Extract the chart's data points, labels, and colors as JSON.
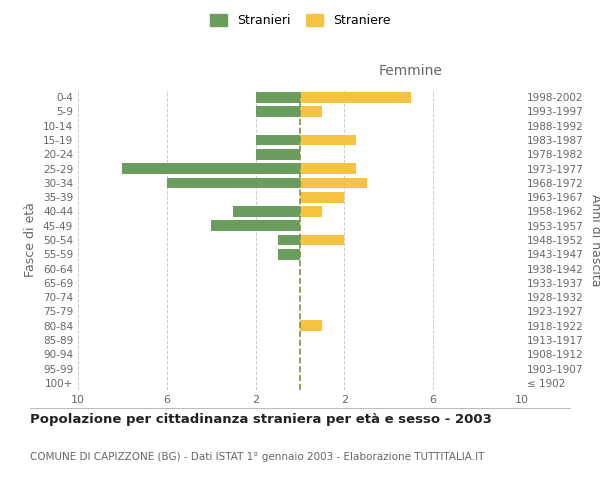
{
  "age_groups": [
    "100+",
    "95-99",
    "90-94",
    "85-89",
    "80-84",
    "75-79",
    "70-74",
    "65-69",
    "60-64",
    "55-59",
    "50-54",
    "45-49",
    "40-44",
    "35-39",
    "30-34",
    "25-29",
    "20-24",
    "15-19",
    "10-14",
    "5-9",
    "0-4"
  ],
  "birth_years": [
    "≤ 1902",
    "1903-1907",
    "1908-1912",
    "1913-1917",
    "1918-1922",
    "1923-1927",
    "1928-1932",
    "1933-1937",
    "1938-1942",
    "1943-1947",
    "1948-1952",
    "1953-1957",
    "1958-1962",
    "1963-1967",
    "1968-1972",
    "1973-1977",
    "1978-1982",
    "1983-1987",
    "1988-1992",
    "1993-1997",
    "1998-2002"
  ],
  "males": [
    0,
    0,
    0,
    0,
    0,
    0,
    0,
    0,
    0,
    1,
    1,
    4,
    3,
    0,
    6,
    8,
    2,
    2,
    0,
    2,
    2
  ],
  "females": [
    0,
    0,
    0,
    0,
    1,
    0,
    0,
    0,
    0,
    0,
    2,
    0,
    1,
    2,
    3,
    2.5,
    0,
    2.5,
    0,
    1,
    5
  ],
  "male_color": "#6b9e5e",
  "female_color": "#f5c342",
  "center_line_color": "#8b8b3a",
  "title": "Popolazione per cittadinanza straniera per età e sesso - 2003",
  "subtitle": "COMUNE DI CAPIZZONE (BG) - Dati ISTAT 1° gennaio 2003 - Elaborazione TUTTITALIA.IT",
  "left_axis_label": "Fasce di età",
  "right_axis_label": "Anni di nascita",
  "femmine_label": "Femmine",
  "stranieri_label": "Stranieri",
  "straniere_label": "Straniere",
  "xlim": 10,
  "xticks": [
    -10,
    -6,
    -2,
    2,
    6,
    10
  ],
  "xticklabels": [
    "10",
    "6",
    "2",
    "2",
    "6",
    "10"
  ],
  "background_color": "#ffffff",
  "grid_color": "#cccccc",
  "text_color": "#666666",
  "title_color": "#222222"
}
